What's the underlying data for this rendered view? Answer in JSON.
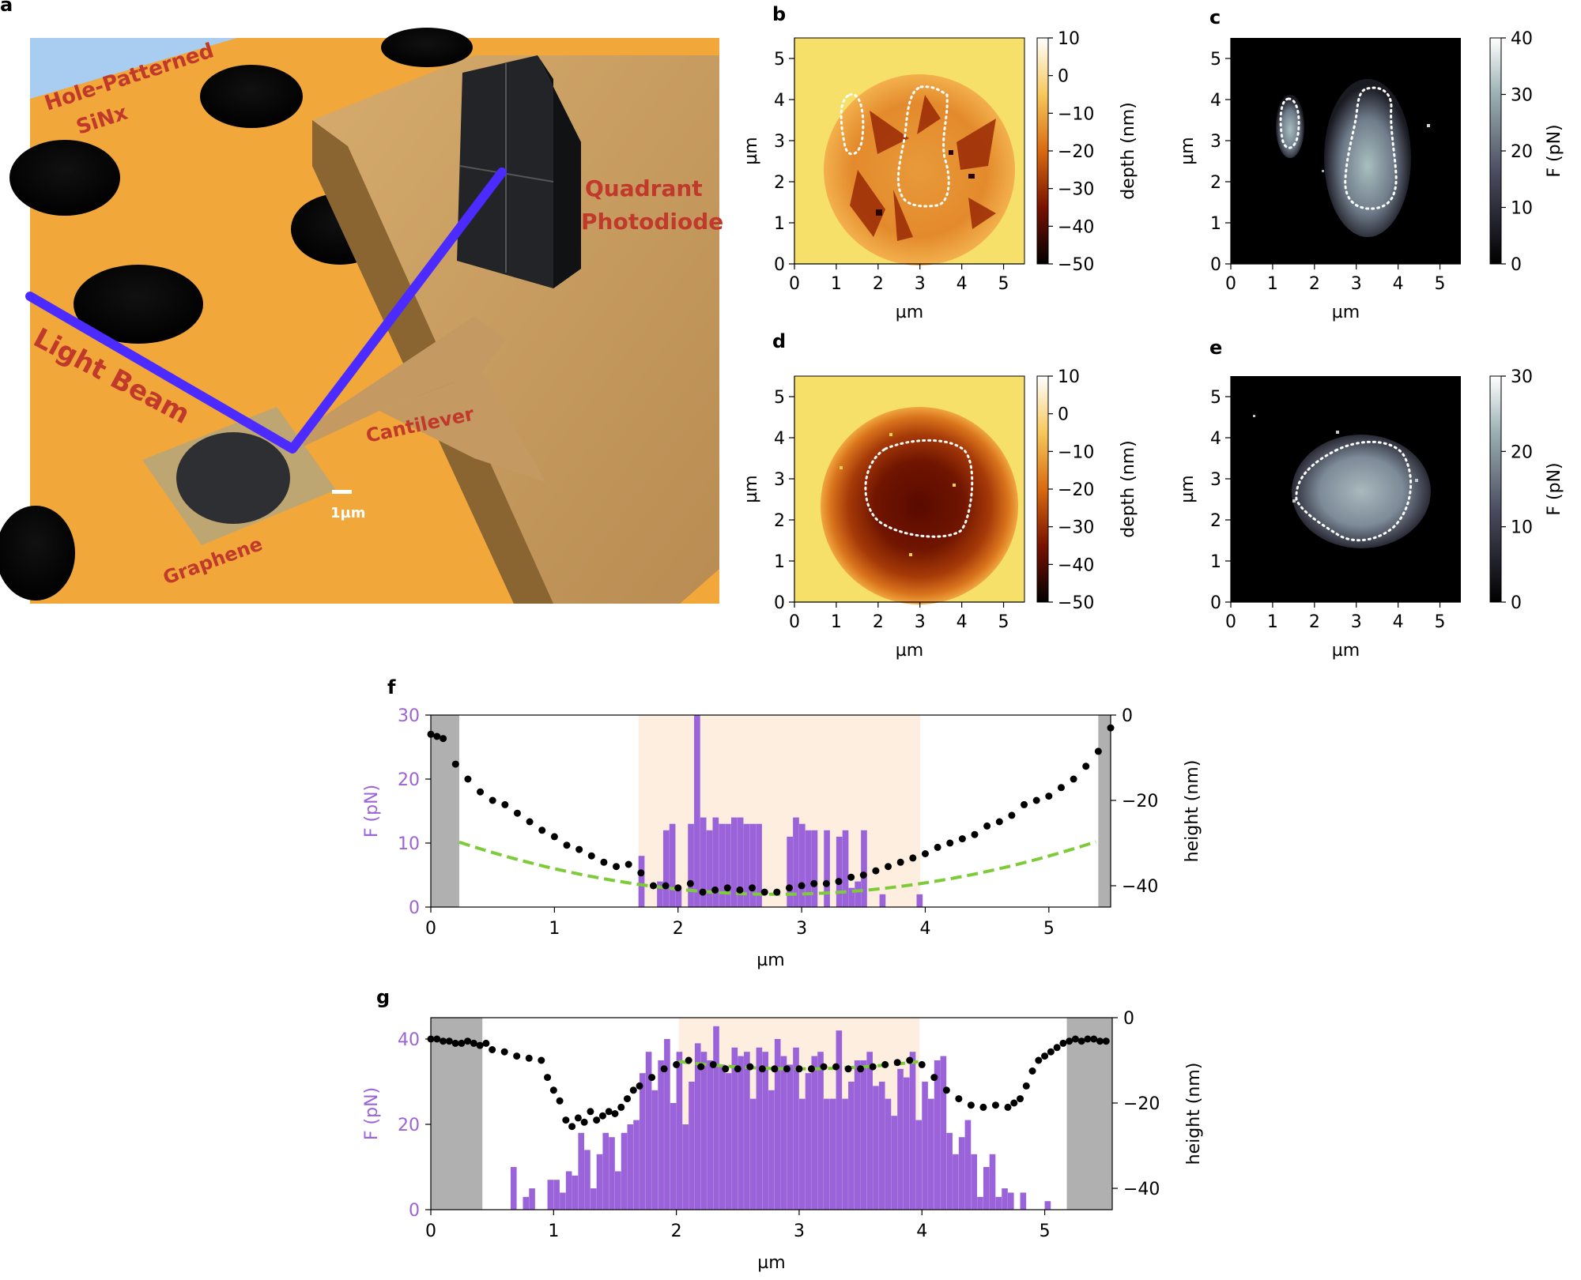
{
  "panel_letters": {
    "a": "a",
    "b": "b",
    "c": "c",
    "d": "d",
    "e": "e",
    "f": "f",
    "g": "g"
  },
  "illustration": {
    "label_substrate_1": "Hole-Patterned",
    "label_substrate_2": "SiNx",
    "label_beam": "Light Beam",
    "label_cantilever": "Cantilever",
    "label_detector_1": "Quadrant",
    "label_detector_2": "Photodiode",
    "label_graphene": "Graphene",
    "label_scale": "1µm",
    "colors": {
      "substrate": "#f2a93b",
      "beam": "#4b2bff",
      "cantilever": "#c9a06a",
      "label": "#c0392b"
    }
  },
  "chart_data": [
    {
      "id": "b",
      "type": "heatmap",
      "xlabel": "µm",
      "ylabel": "µm",
      "xlim": [
        0,
        5.5
      ],
      "ylim": [
        0,
        5.5
      ],
      "xticks": [
        "0",
        "1",
        "2",
        "3",
        "4",
        "5"
      ],
      "yticks": [
        "0",
        "1",
        "2",
        "3",
        "4",
        "5"
      ],
      "colorbar": {
        "label": "depth (nm)",
        "range": [
          -50,
          10
        ],
        "ticks": [
          "10",
          "0",
          "−10",
          "−20",
          "−30",
          "−40",
          "−50"
        ],
        "colormap": "afmhot"
      },
      "description": "irregular crumpled membrane in 2.3 µm radius hole, two dotted contours"
    },
    {
      "id": "c",
      "type": "heatmap",
      "xlabel": "µm",
      "ylabel": "µm",
      "xlim": [
        0,
        5.5
      ],
      "ylim": [
        0,
        5.5
      ],
      "xticks": [
        "0",
        "1",
        "2",
        "3",
        "4",
        "5"
      ],
      "yticks": [
        "0",
        "1",
        "2",
        "3",
        "4",
        "5"
      ],
      "colorbar": {
        "label": "F (pN)",
        "range": [
          0,
          40
        ],
        "ticks": [
          "40",
          "30",
          "20",
          "10",
          "0"
        ],
        "colormap": "bone"
      }
    },
    {
      "id": "d",
      "type": "heatmap",
      "xlabel": "µm",
      "ylabel": "µm",
      "xlim": [
        0,
        5.5
      ],
      "ylim": [
        0,
        5.5
      ],
      "xticks": [
        "0",
        "1",
        "2",
        "3",
        "4",
        "5"
      ],
      "yticks": [
        "0",
        "1",
        "2",
        "3",
        "4",
        "5"
      ],
      "colorbar": {
        "label": "depth (nm)",
        "range": [
          -50,
          10
        ],
        "ticks": [
          "10",
          "0",
          "−10",
          "−20",
          "−30",
          "−40",
          "−50"
        ],
        "colormap": "afmhot"
      }
    },
    {
      "id": "e",
      "type": "heatmap",
      "xlabel": "µm",
      "ylabel": "µm",
      "xlim": [
        0,
        5.5
      ],
      "ylim": [
        0,
        5.5
      ],
      "xticks": [
        "0",
        "1",
        "2",
        "3",
        "4",
        "5"
      ],
      "yticks": [
        "0",
        "1",
        "2",
        "3",
        "4",
        "5"
      ],
      "colorbar": {
        "label": "F (pN)",
        "range": [
          0,
          30
        ],
        "ticks": [
          "30",
          "20",
          "10",
          "0"
        ],
        "colormap": "bone"
      }
    },
    {
      "id": "f",
      "type": "bar",
      "xlabel": "µm",
      "ylabel_left": "F (pN)",
      "ylabel_right": "height (nm)",
      "xlim": [
        0,
        5.5
      ],
      "ylim_left": [
        0,
        30
      ],
      "ylim_right": [
        -45,
        0
      ],
      "xticks": [
        "0",
        "1",
        "2",
        "3",
        "4",
        "5"
      ],
      "yticks_left": [
        "30",
        "20",
        "10",
        "0"
      ],
      "yticks_right": [
        "0",
        "−20",
        "−40"
      ],
      "gray_regions": [
        [
          0,
          0.23
        ],
        [
          5.4,
          5.5
        ]
      ],
      "shaded_region": [
        1.68,
        3.96
      ],
      "bar_x": [
        1.68,
        1.73,
        1.78,
        1.83,
        1.88,
        1.93,
        1.98,
        2.03,
        2.08,
        2.13,
        2.18,
        2.23,
        2.28,
        2.33,
        2.38,
        2.43,
        2.48,
        2.53,
        2.58,
        2.63,
        2.68,
        2.73,
        2.78,
        2.83,
        2.88,
        2.93,
        2.98,
        3.03,
        3.08,
        3.13,
        3.18,
        3.23,
        3.28,
        3.33,
        3.38,
        3.43,
        3.48,
        3.53,
        3.58,
        3.63,
        3.68,
        3.73,
        3.78,
        3.83,
        3.88,
        3.93
      ],
      "bar_values": [
        8,
        0,
        0,
        4,
        12,
        13,
        3,
        0,
        13,
        30,
        14,
        12,
        14,
        13,
        13,
        14,
        14,
        13,
        13,
        13,
        0,
        0,
        0,
        0,
        11,
        14,
        13,
        12,
        12,
        0,
        12,
        0,
        11,
        12,
        3,
        4,
        12,
        0,
        0,
        2,
        0,
        0,
        0,
        0,
        0,
        2
      ],
      "points_x": [
        0.0,
        0.05,
        0.1,
        0.2,
        0.3,
        0.4,
        0.5,
        0.6,
        0.7,
        0.8,
        0.9,
        1.0,
        1.1,
        1.2,
        1.3,
        1.4,
        1.5,
        1.6,
        1.7,
        1.8,
        1.9,
        2.0,
        2.1,
        2.2,
        2.3,
        2.4,
        2.5,
        2.6,
        2.7,
        2.8,
        2.9,
        3.0,
        3.1,
        3.2,
        3.3,
        3.4,
        3.5,
        3.6,
        3.7,
        3.8,
        3.9,
        4.0,
        4.1,
        4.2,
        4.3,
        4.4,
        4.5,
        4.6,
        4.7,
        4.8,
        4.9,
        5.0,
        5.1,
        5.2,
        5.3,
        5.4,
        5.5
      ],
      "points_y": [
        -4.5,
        -5,
        -5.5,
        -11.5,
        -15,
        -18,
        -20,
        -21,
        -23,
        -25,
        -27,
        -28.5,
        -30.5,
        -31.5,
        -33,
        -34.5,
        -35.5,
        -35,
        -37,
        -40,
        -40,
        -40.5,
        -39.5,
        -41.5,
        -41,
        -40.5,
        -41,
        -40.5,
        -41.5,
        -41.5,
        -40.5,
        -40,
        -39.5,
        -39.5,
        -39,
        -38,
        -37.5,
        -36.5,
        -35.5,
        -34.5,
        -33.5,
        -32.5,
        -31,
        -30,
        -29,
        -28,
        -26,
        -25,
        -23.5,
        -21,
        -20,
        -19,
        -17,
        -15,
        -12,
        -8.5,
        -3
      ],
      "fit": "parabola"
    },
    {
      "id": "g",
      "type": "bar",
      "xlabel": "µm",
      "ylabel_left": "F (pN)",
      "ylabel_right": "height (nm)",
      "xlim": [
        0,
        5.55
      ],
      "ylim_left": [
        0,
        45
      ],
      "ylim_right": [
        -45,
        0
      ],
      "xticks": [
        "0",
        "1",
        "2",
        "3",
        "4",
        "5"
      ],
      "yticks_left": [
        "40",
        "20",
        "0"
      ],
      "yticks_right": [
        "0",
        "−20",
        "−40"
      ],
      "gray_regions": [
        [
          0,
          0.42
        ],
        [
          5.18,
          5.55
        ]
      ],
      "shaded_region": [
        2.02,
        3.98
      ],
      "bar_x": [
        0.65,
        0.75,
        0.8,
        0.95,
        1.0,
        1.05,
        1.1,
        1.15,
        1.2,
        1.25,
        1.3,
        1.35,
        1.4,
        1.45,
        1.5,
        1.55,
        1.6,
        1.65,
        1.7,
        1.75,
        1.8,
        1.85,
        1.9,
        1.95,
        2.0,
        2.05,
        2.1,
        2.15,
        2.2,
        2.25,
        2.3,
        2.35,
        2.4,
        2.45,
        2.5,
        2.55,
        2.6,
        2.65,
        2.7,
        2.75,
        2.8,
        2.85,
        2.9,
        2.95,
        3.0,
        3.05,
        3.1,
        3.15,
        3.2,
        3.25,
        3.3,
        3.35,
        3.4,
        3.45,
        3.5,
        3.55,
        3.6,
        3.65,
        3.7,
        3.75,
        3.8,
        3.85,
        3.9,
        3.95,
        4.0,
        4.05,
        4.1,
        4.15,
        4.2,
        4.25,
        4.3,
        4.35,
        4.4,
        4.45,
        4.5,
        4.55,
        4.6,
        4.65,
        4.7,
        4.8,
        5.0
      ],
      "bar_values": [
        10,
        3,
        5,
        7,
        7,
        4,
        9,
        8,
        18,
        14,
        5,
        13,
        18,
        17,
        9,
        18,
        20,
        21,
        32,
        37,
        28,
        35,
        40,
        25,
        37,
        20,
        30,
        39,
        37,
        35,
        43,
        34,
        32,
        38,
        36,
        37,
        26,
        38,
        37,
        28,
        40,
        36,
        34,
        38,
        26,
        32,
        36,
        37,
        26,
        26,
        42,
        26,
        30,
        35,
        35,
        37,
        29,
        30,
        26,
        22,
        33,
        31,
        37,
        21,
        30,
        26,
        35,
        36,
        18,
        13,
        17,
        21,
        13,
        3,
        10,
        13,
        3,
        5,
        4,
        4,
        2
      ],
      "points_x": [
        0.0,
        0.05,
        0.1,
        0.15,
        0.2,
        0.25,
        0.3,
        0.35,
        0.4,
        0.45,
        0.5,
        0.6,
        0.7,
        0.8,
        0.9,
        0.95,
        1.0,
        1.05,
        1.1,
        1.15,
        1.2,
        1.25,
        1.3,
        1.35,
        1.4,
        1.45,
        1.5,
        1.55,
        1.6,
        1.65,
        1.7,
        1.8,
        1.9,
        2.0,
        2.1,
        2.2,
        2.3,
        2.4,
        2.5,
        2.6,
        2.7,
        2.8,
        2.9,
        3.0,
        3.1,
        3.2,
        3.3,
        3.4,
        3.5,
        3.6,
        3.7,
        3.8,
        3.9,
        4.0,
        4.1,
        4.2,
        4.3,
        4.4,
        4.5,
        4.6,
        4.7,
        4.75,
        4.8,
        4.85,
        4.9,
        4.95,
        5.0,
        5.05,
        5.1,
        5.15,
        5.2,
        5.25,
        5.3,
        5.35,
        5.4,
        5.45,
        5.5
      ],
      "points_y": [
        -5,
        -5,
        -5.5,
        -5.5,
        -6,
        -6,
        -5.5,
        -6,
        -6.5,
        -6,
        -7.5,
        -8,
        -9,
        -9.5,
        -10,
        -14,
        -17,
        -19.5,
        -24,
        -25.5,
        -23.5,
        -24.5,
        -22,
        -24,
        -23,
        -22,
        -22.5,
        -21,
        -19,
        -17,
        -16,
        -14,
        -12,
        -11,
        -10,
        -11.5,
        -11,
        -12,
        -12,
        -11.5,
        -12,
        -12,
        -12,
        -12,
        -12,
        -11.5,
        -11.5,
        -12,
        -12,
        -11.5,
        -11,
        -10.5,
        -10,
        -11,
        -14,
        -17,
        -19,
        -20.5,
        -21,
        -20.5,
        -21,
        -20,
        -19,
        -16,
        -12.5,
        -10,
        -9,
        -8,
        -7,
        -6,
        -5.5,
        -5,
        -5.5,
        -5,
        -5,
        -5.5,
        -5.5
      ],
      "fit": "flat"
    }
  ]
}
